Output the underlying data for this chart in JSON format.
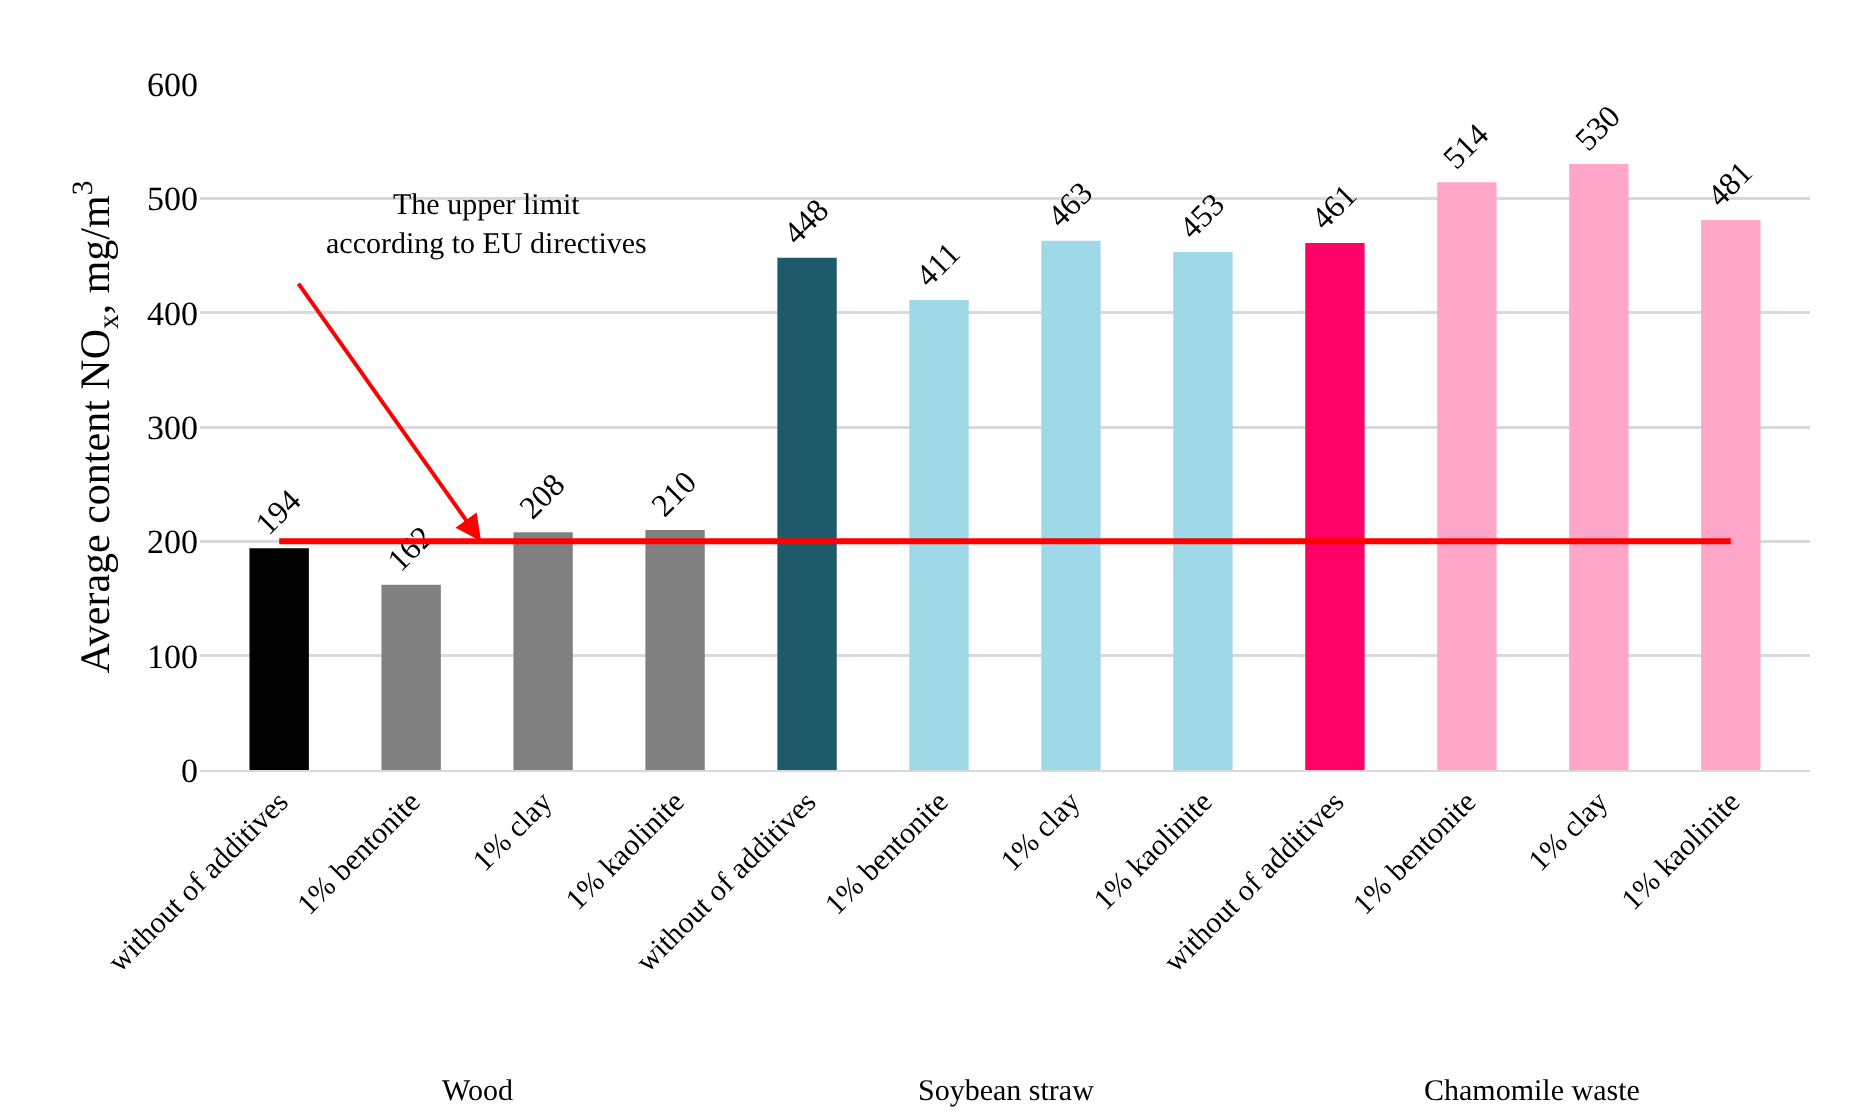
{
  "chart_data": {
    "type": "bar",
    "ylabel": "Average content NO$_{x}$, mg/m$^{3}$",
    "categories": [
      "without of additives",
      "1% bentonite",
      "1% clay",
      "1% kaolinite",
      "without of additives",
      "1% bentonite",
      "1% clay",
      "1% kaolinite",
      "without of additives",
      "1% bentonite",
      "1% clay",
      "1% kaolinite"
    ],
    "values": [
      194,
      162,
      208,
      210,
      448,
      411,
      463,
      453,
      461,
      514,
      530,
      481
    ],
    "colors": [
      "#000000",
      "#808080",
      "#808080",
      "#808080",
      "#1f5a6a",
      "#9fd8e6",
      "#9fd8e6",
      "#9fd8e6",
      "#ff0066",
      "#ffa6c9",
      "#ffa6c9",
      "#ffa6c9"
    ],
    "data_labels": true,
    "ylim": [
      0,
      600
    ],
    "yticks": [
      0,
      100,
      200,
      300,
      400,
      500,
      600
    ],
    "grid": "y",
    "ref_lines": [
      {
        "axis": "y",
        "value": 200,
        "label": "The upper limit\naccording to EU directives",
        "color": "#ff0000"
      }
    ],
    "annotations": [
      "Wood",
      "Soybean straw",
      "Chamomile waste"
    ]
  }
}
